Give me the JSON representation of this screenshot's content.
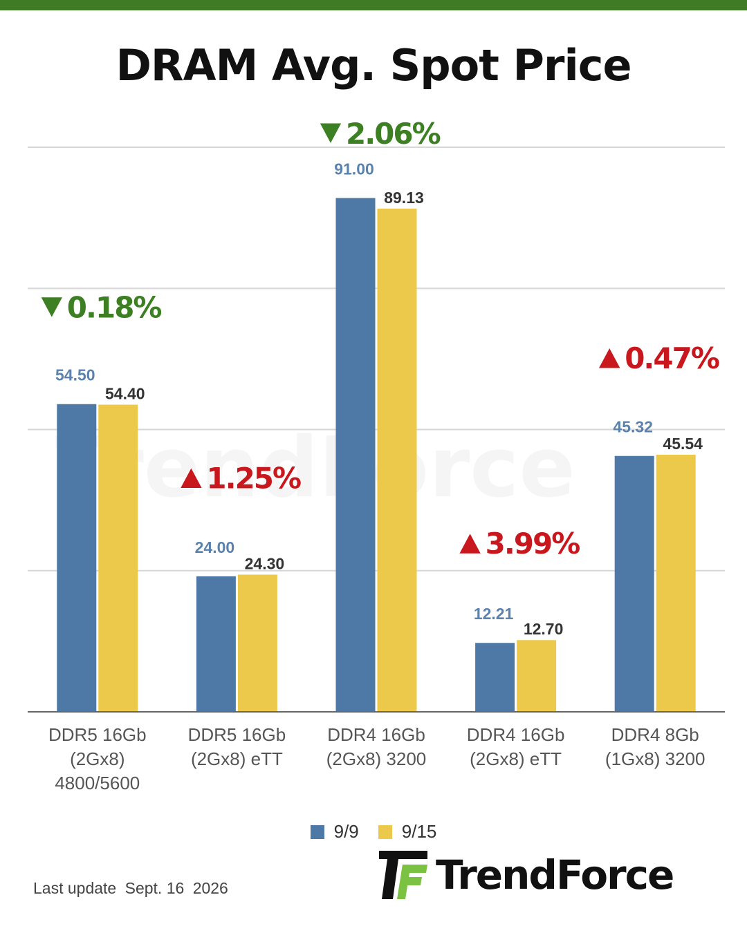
{
  "title": "DRAM Avg. Spot Price",
  "footer": {
    "label": "Last update",
    "date": "Sept. 16",
    "year": "2026"
  },
  "brand": {
    "name": "TrendForce",
    "watermark": "TrendForce"
  },
  "colors": {
    "series_1": "#4e79a7",
    "series_2": "#ecc94b",
    "down": "#3d7f23",
    "up": "#c8171d",
    "brand_green": "#3f7a24"
  },
  "chart_data": {
    "type": "bar",
    "title": "DRAM Avg. Spot Price",
    "categories": [
      [
        "DDR5 16Gb",
        "(2Gx8)",
        "4800/5600"
      ],
      [
        "DDR5 16Gb",
        "(2Gx8) eTT"
      ],
      [
        "DDR4 16Gb",
        "(2Gx8) 3200"
      ],
      [
        "DDR4 16Gb",
        "(2Gx8) eTT"
      ],
      [
        "DDR4 8Gb",
        "(1Gx8) 3200"
      ]
    ],
    "series": [
      {
        "name": "9/9",
        "values": [
          54.5,
          24.0,
          91.0,
          12.21,
          45.32
        ],
        "labels": [
          "54.50",
          "24.00",
          "91.00",
          "12.21",
          "45.32"
        ]
      },
      {
        "name": "9/15",
        "values": [
          54.4,
          24.3,
          89.13,
          12.7,
          45.54
        ],
        "labels": [
          "54.40",
          "24.30",
          "89.13",
          "12.70",
          "45.54"
        ]
      }
    ],
    "changes": [
      {
        "direction": "down",
        "text": "0.18%"
      },
      {
        "direction": "up",
        "text": "1.25%"
      },
      {
        "direction": "down",
        "text": "2.06%"
      },
      {
        "direction": "up",
        "text": "3.99%"
      },
      {
        "direction": "up",
        "text": "0.47%"
      }
    ],
    "ylim": [
      0,
      100
    ],
    "gridlines": [
      0,
      25,
      50,
      75,
      100
    ],
    "grid": true,
    "legend_position": "bottom-center",
    "xlabel": "",
    "ylabel": ""
  }
}
